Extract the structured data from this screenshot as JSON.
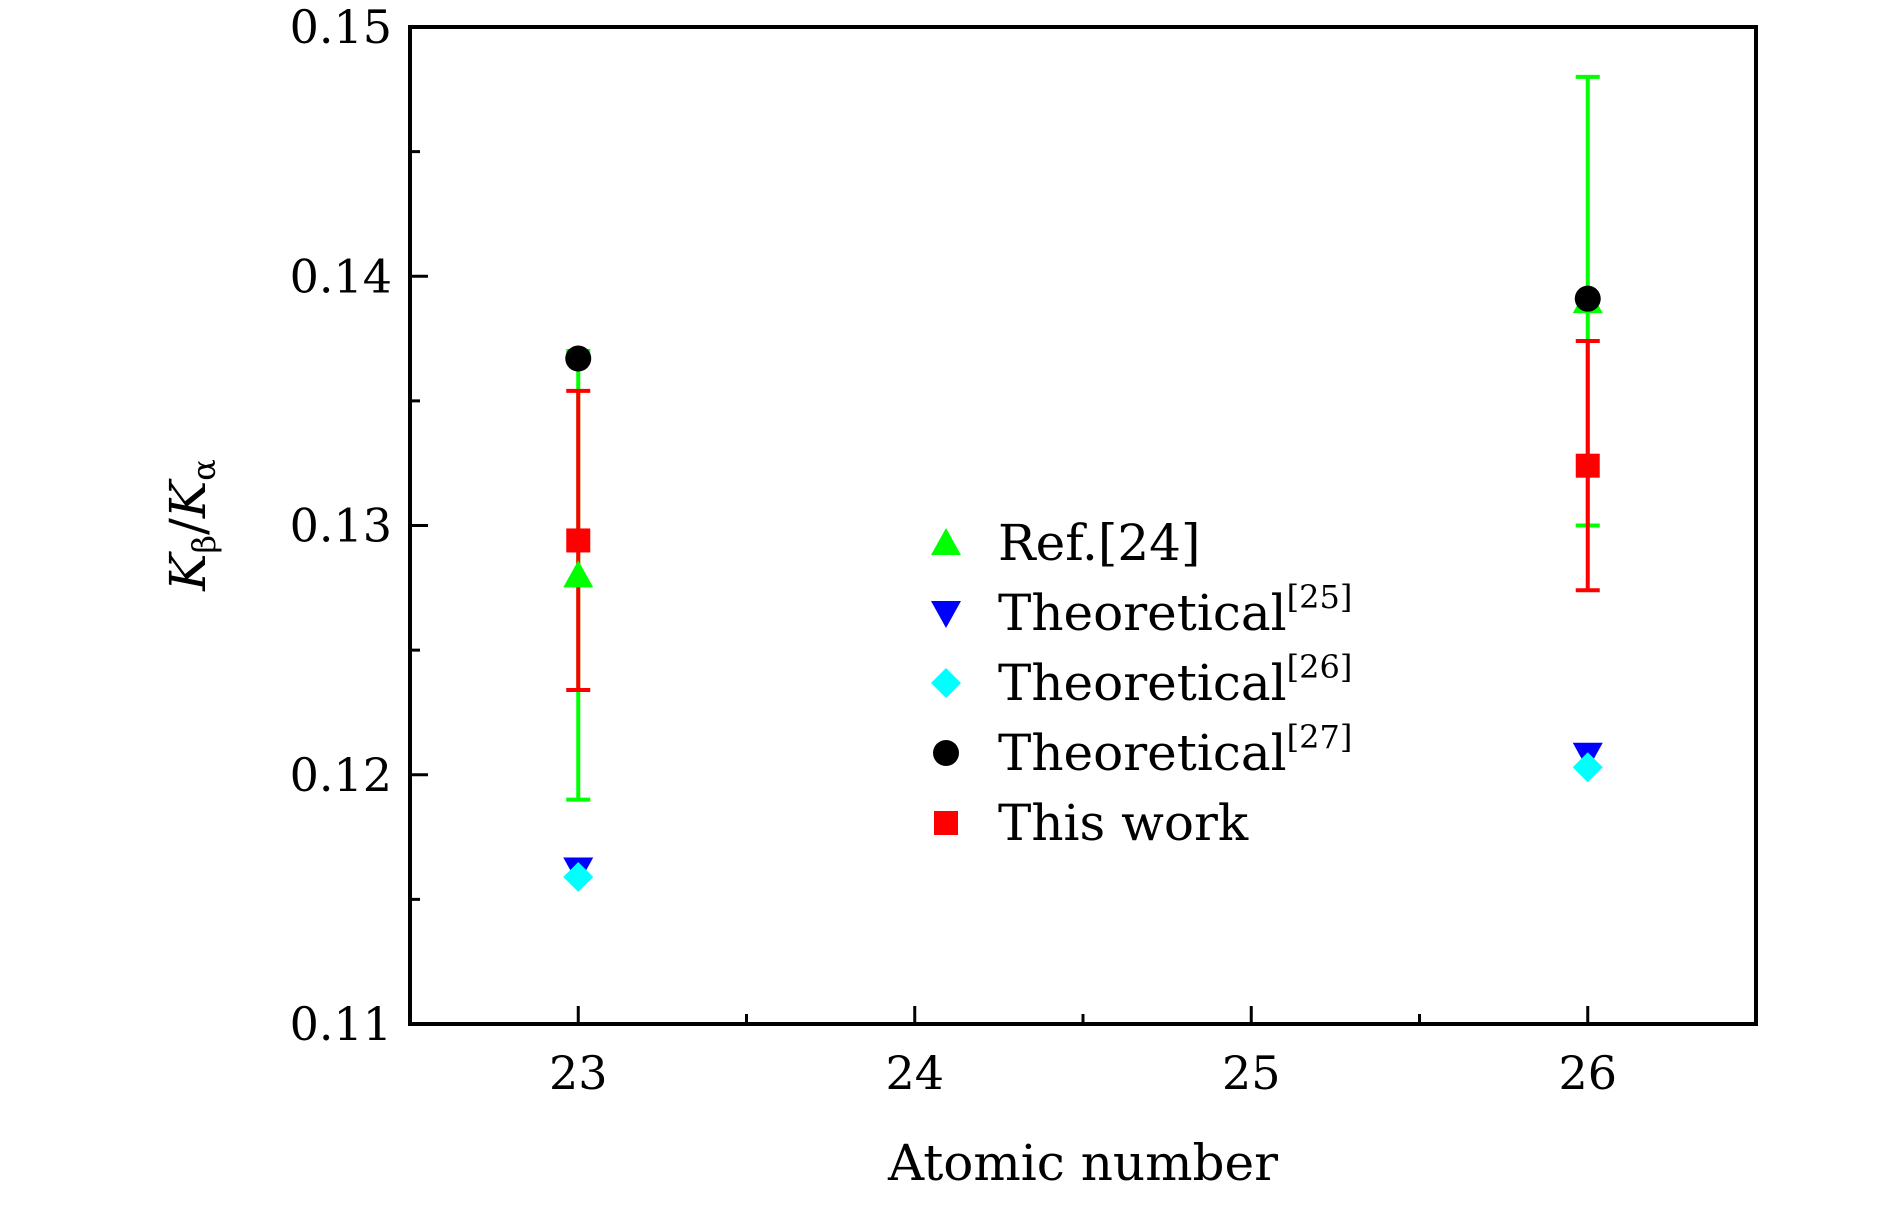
{
  "chart_data": {
    "type": "scatter",
    "title": "",
    "xlabel": "Atomic number",
    "ylabel": {
      "base": "K",
      "sub_num": "β",
      "slash": "/",
      "base2": "K",
      "sub_den": "α"
    },
    "xlim": [
      22.5,
      26.5
    ],
    "ylim": [
      0.11,
      0.15
    ],
    "xticks": [
      23,
      24,
      25,
      26
    ],
    "xtick_labels": [
      "23",
      "24",
      "25",
      "26"
    ],
    "yticks": [
      0.11,
      0.12,
      0.13,
      0.14,
      0.15
    ],
    "ytick_labels": [
      "0.11",
      "0.12",
      "0.13",
      "0.14",
      "0.15"
    ],
    "grid": false,
    "legend_position": "center",
    "series": [
      {
        "name": "Ref.[24]",
        "label_main": "Ref.[24]",
        "label_sup": "",
        "marker": "triangle-up",
        "color": "#00ff00",
        "x": [
          23,
          26
        ],
        "y": [
          0.128,
          0.139
        ],
        "err": [
          0.009,
          0.009
        ]
      },
      {
        "name": "Theoretical[25]",
        "label_main": "Theoretical",
        "label_sup": "[25]",
        "marker": "triangle-down",
        "color": "#0000ff",
        "x": [
          23,
          26
        ],
        "y": [
          0.1162,
          0.1208
        ],
        "err": null
      },
      {
        "name": "Theoretical[26]",
        "label_main": "Theoretical",
        "label_sup": "[26]",
        "marker": "diamond",
        "color": "#00ffff",
        "x": [
          23,
          26
        ],
        "y": [
          0.1159,
          0.1203
        ],
        "err": null
      },
      {
        "name": "Theoretical[27]",
        "label_main": "Theoretical",
        "label_sup": "[27]",
        "marker": "circle",
        "color": "#000000",
        "x": [
          23,
          26
        ],
        "y": [
          0.1367,
          0.1391
        ],
        "err": null
      },
      {
        "name": "This work",
        "label_main": "This work",
        "label_sup": "",
        "marker": "square",
        "color": "#ff0000",
        "x": [
          23,
          26
        ],
        "y": [
          0.1294,
          0.1324
        ],
        "err": [
          0.006,
          0.005
        ]
      }
    ]
  }
}
